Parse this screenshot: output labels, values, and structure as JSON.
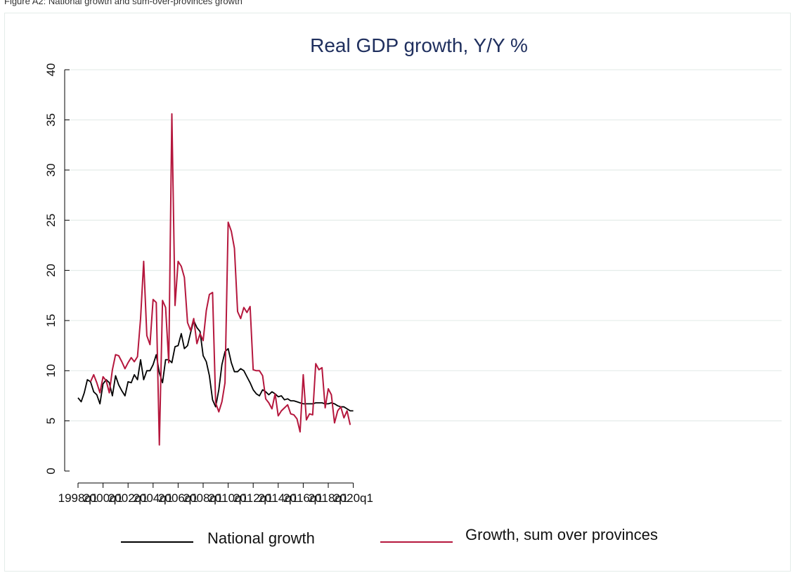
{
  "caption": "Figure A2: National growth and sum-over-provinces growth",
  "chart_data": {
    "type": "line",
    "title": "Real GDP growth, Y/Y %",
    "xlabel": "",
    "ylabel": "",
    "ylim": [
      0,
      40
    ],
    "yticks": [
      0,
      5,
      10,
      15,
      20,
      25,
      30,
      35,
      40
    ],
    "xticks": [
      "1998q1",
      "2000q1",
      "2002q1",
      "2004q1",
      "2006q1",
      "2008q1",
      "2010q1",
      "2012q1",
      "2014q1",
      "2016q1",
      "2018q1",
      "2020q1"
    ],
    "x_start": "1998q1",
    "grid": true,
    "legend_position": "bottom",
    "colors": {
      "national": "#000000",
      "provinces": "#b5173d",
      "grid": "#e4ece9",
      "title": "#1f2f5e"
    },
    "series": [
      {
        "name": "National growth",
        "values": [
          7.3,
          6.9,
          7.8,
          9.1,
          8.9,
          7.9,
          7.6,
          6.7,
          8.7,
          9.1,
          8.8,
          7.5,
          9.5,
          8.6,
          8.0,
          7.5,
          8.9,
          8.8,
          9.6,
          9.1,
          11.1,
          9.1,
          10.0,
          10.0,
          10.6,
          11.6,
          9.8,
          8.8,
          11.1,
          11.1,
          10.8,
          12.4,
          12.5,
          13.7,
          12.2,
          12.5,
          13.8,
          15.0,
          14.3,
          13.9,
          11.5,
          10.9,
          9.5,
          7.1,
          6.4,
          8.1,
          10.6,
          11.9,
          12.2,
          10.8,
          9.9,
          9.9,
          10.2,
          10.0,
          9.4,
          8.8,
          8.1,
          7.7,
          7.5,
          8.1,
          7.9,
          7.6,
          7.9,
          7.7,
          7.4,
          7.5,
          7.1,
          7.2,
          7.0,
          7.0,
          6.9,
          6.8,
          6.7,
          6.7,
          6.7,
          6.7,
          6.8,
          6.8,
          6.8,
          6.7,
          6.7,
          6.8,
          6.7,
          6.5,
          6.4,
          6.4,
          6.2,
          6.0,
          6.0
        ]
      },
      {
        "name": "Growth, sum over provinces",
        "start_index": 4,
        "values": [
          8.9,
          9.6,
          8.8,
          7.8,
          9.4,
          9.0,
          7.8,
          10.1,
          11.6,
          11.5,
          10.9,
          10.2,
          10.8,
          11.3,
          10.9,
          11.4,
          15.2,
          20.9,
          13.5,
          12.6,
          17.1,
          16.8,
          2.6,
          17.0,
          16.3,
          10.8,
          35.6,
          16.5,
          20.9,
          20.4,
          19.3,
          14.8,
          14.0,
          15.2,
          12.7,
          13.7,
          13.0,
          16.0,
          17.6,
          17.8,
          6.8,
          5.9,
          6.9,
          8.8,
          24.8,
          23.9,
          22.2,
          15.9,
          15.2,
          16.3,
          15.8,
          16.4,
          10.1,
          10.0,
          10.0,
          9.5,
          7.2,
          6.8,
          6.2,
          7.7,
          5.5,
          6.0,
          6.3,
          6.6,
          5.7,
          5.6,
          5.2,
          3.9,
          9.6,
          5.1,
          5.7,
          5.6,
          10.7,
          10.1,
          10.3,
          6.3,
          8.2,
          7.6,
          4.8,
          6.0,
          6.4,
          5.3,
          6.0,
          4.6
        ]
      }
    ]
  }
}
